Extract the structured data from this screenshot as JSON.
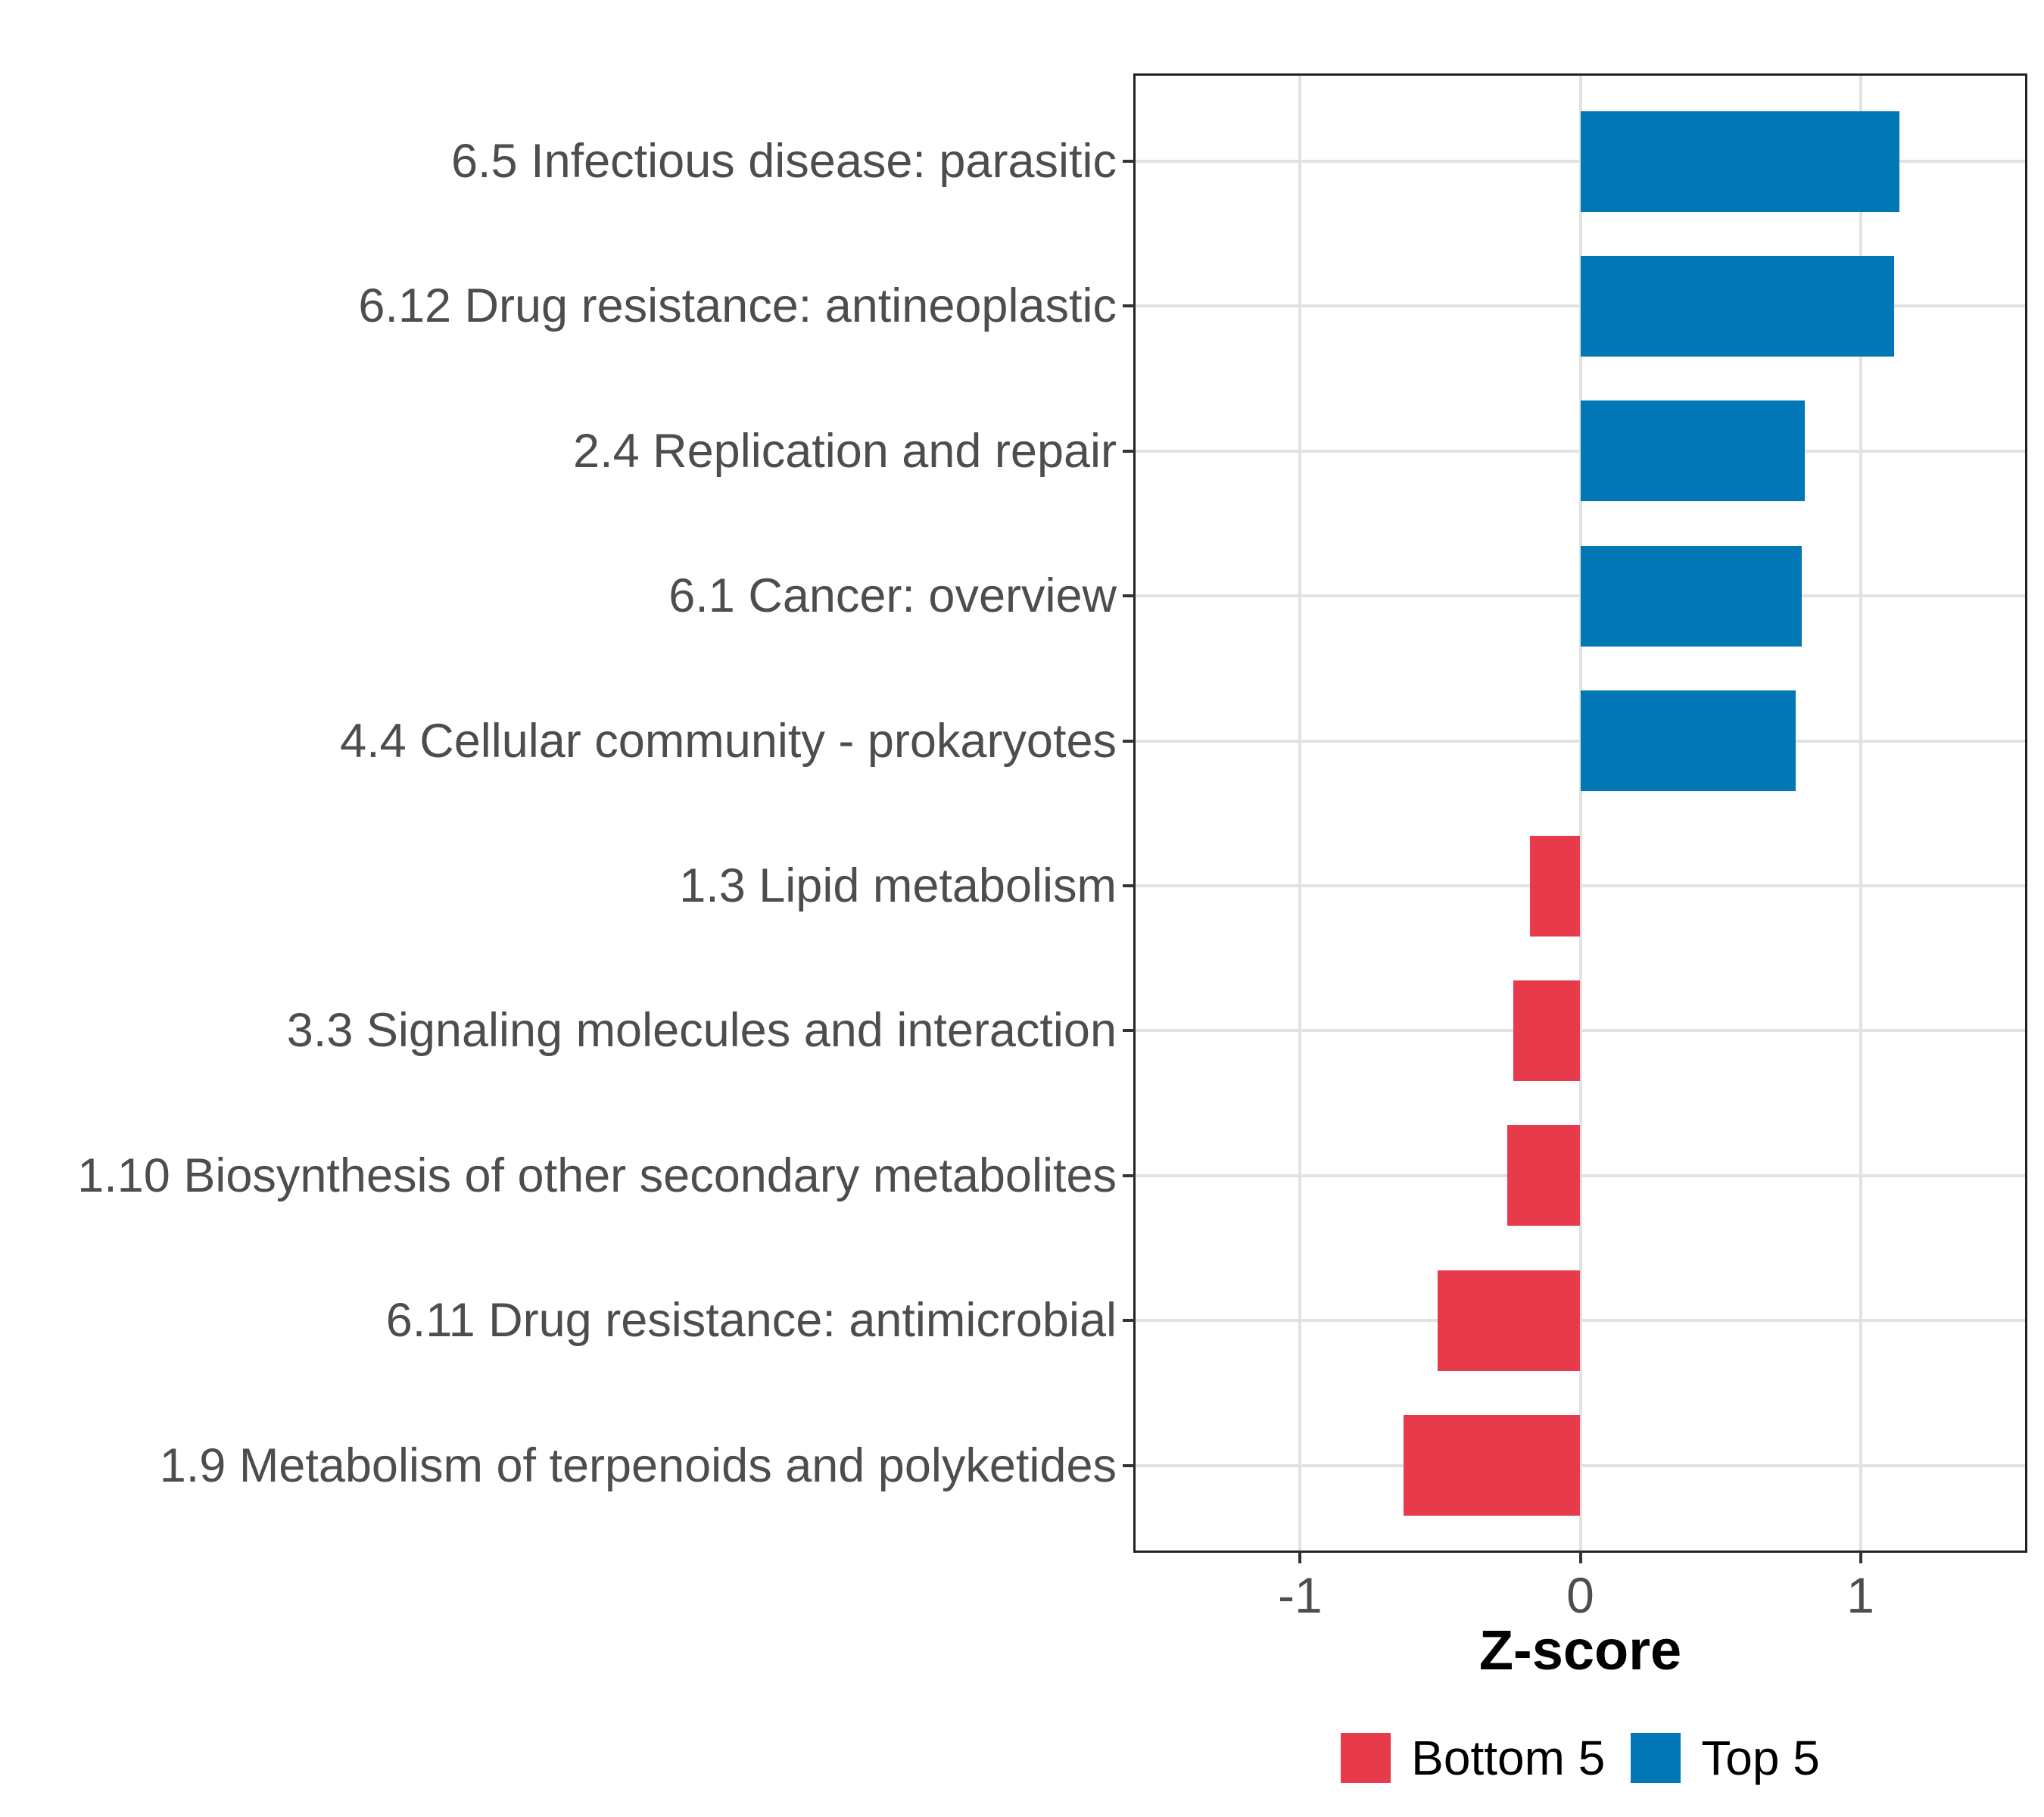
{
  "chart_data": {
    "type": "bar",
    "orientation": "horizontal",
    "xlabel": "Z-score",
    "ylabel": "",
    "categories": [
      "6.5 Infectious disease: parasitic",
      "6.12 Drug resistance: antineoplastic",
      "2.4 Replication and repair",
      "6.1 Cancer: overview",
      "4.4 Cellular community - prokaryotes",
      "1.3 Lipid metabolism",
      "3.3 Signaling molecules and interaction",
      "1.10 Biosynthesis of other secondary metabolites",
      "6.11 Drug resistance: antimicrobial",
      "1.9 Metabolism of terpenoids and polyketides"
    ],
    "values": [
      1.14,
      1.12,
      0.8,
      0.79,
      0.77,
      -0.18,
      -0.24,
      -0.26,
      -0.51,
      -0.63
    ],
    "groups": [
      "Top 5",
      "Top 5",
      "Top 5",
      "Top 5",
      "Top 5",
      "Bottom 5",
      "Bottom 5",
      "Bottom 5",
      "Bottom 5",
      "Bottom 5"
    ],
    "x_ticks": [
      {
        "value": -1,
        "label": "-1"
      },
      {
        "value": 0,
        "label": "0"
      },
      {
        "value": 1,
        "label": "1"
      }
    ],
    "xlim": [
      -1.59,
      1.59
    ],
    "grid": "major-only",
    "legend_position": "bottom",
    "legend": [
      {
        "label": "Bottom 5",
        "color": "#E73A4A"
      },
      {
        "label": "Top 5",
        "color": "#0277B5"
      }
    ],
    "colors": {
      "top5": "#0277B5",
      "bottom5": "#E73A4A",
      "grid": "#E2E2E2",
      "axis_text": "#4D4D4D",
      "tick_mark": "#333333",
      "panel_border": "#222222",
      "background": "#FFFFFF"
    }
  }
}
